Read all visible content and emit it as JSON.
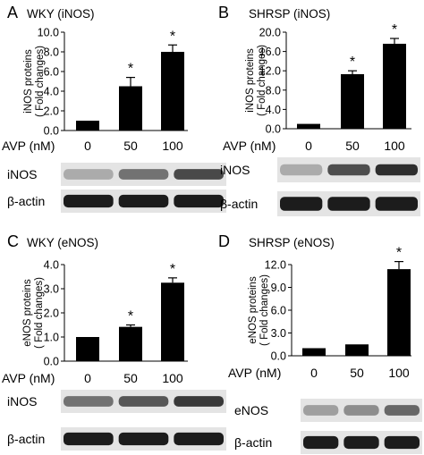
{
  "chart_data": [
    {
      "panel": "A",
      "title": "WKY (iNOS)",
      "type": "bar",
      "ylabel": "iNOS proteins ( Fold changes)",
      "ylim": [
        0,
        10
      ],
      "yticks": [
        "0.0",
        "2.0",
        "4.0",
        "6.0",
        "8.0",
        "10.0"
      ],
      "xlabel": "AVP (nM)",
      "categories": [
        "0",
        "50",
        "100"
      ],
      "values": [
        1.0,
        4.5,
        8.0
      ],
      "errors": [
        0.0,
        0.9,
        0.7
      ],
      "significance": [
        "",
        "*",
        "*"
      ],
      "blots": [
        "iNOS",
        "β-actin"
      ]
    },
    {
      "panel": "B",
      "title": "SHRSP (iNOS)",
      "type": "bar",
      "ylabel": "iNOS proteins ( Fold changes)",
      "ylim": [
        0,
        20
      ],
      "yticks": [
        "0.0",
        "4.0",
        "8.0",
        "12.0",
        "16.0",
        "20.0"
      ],
      "xlabel": "AVP (nM)",
      "categories": [
        "0",
        "50",
        "100"
      ],
      "values": [
        1.0,
        11.3,
        17.6
      ],
      "errors": [
        0.0,
        0.7,
        1.1
      ],
      "significance": [
        "",
        "*",
        "*"
      ],
      "blots": [
        "iNOS",
        "β-actin"
      ]
    },
    {
      "panel": "C",
      "title": "WKY (eNOS)",
      "type": "bar",
      "ylabel": "eNOS proteins ( Fold changes)",
      "ylim": [
        0,
        4
      ],
      "yticks": [
        "0.0",
        "1.0",
        "2.0",
        "3.0",
        "4.0"
      ],
      "xlabel": "AVP (nM)",
      "categories": [
        "0",
        "50",
        "100"
      ],
      "values": [
        1.0,
        1.42,
        3.25
      ],
      "errors": [
        0.0,
        0.08,
        0.2
      ],
      "significance": [
        "",
        "*",
        "*"
      ],
      "blots": [
        "iNOS",
        "β-actin"
      ]
    },
    {
      "panel": "D",
      "title": "SHRSP (eNOS)",
      "type": "bar",
      "ylabel": "eNOS proteins ( Fold changes)",
      "ylim": [
        0,
        12
      ],
      "yticks": [
        "0.0",
        "3.0",
        "6.0",
        "9.0",
        "12.0"
      ],
      "xlabel": "AVP (nM)",
      "categories": [
        "0",
        "50",
        "100"
      ],
      "values": [
        1.0,
        1.5,
        11.4
      ],
      "errors": [
        0.0,
        0.0,
        1.0
      ],
      "significance": [
        "",
        "",
        "*"
      ],
      "blots": [
        "eNOS",
        "β-actin"
      ]
    }
  ]
}
